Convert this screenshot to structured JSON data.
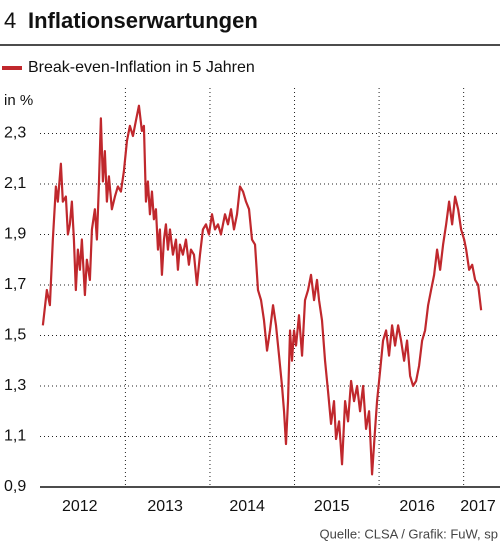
{
  "chart_data": {
    "type": "line",
    "chart_number": "4",
    "title": "Inflationserwartungen",
    "y_unit": "in %",
    "source": "Quelle: CLSA / Grafik: FuW, sp",
    "grid": true,
    "legend": "top-left",
    "xlim": [
      2011.99,
      2017.43
    ],
    "ylim": [
      0.9,
      2.48
    ],
    "xticks": [
      {
        "value": 2012.46,
        "label": "2012"
      },
      {
        "value": 2013.47,
        "label": "2013"
      },
      {
        "value": 2014.44,
        "label": "2014"
      },
      {
        "value": 2015.44,
        "label": "2015"
      },
      {
        "value": 2016.45,
        "label": "2016"
      },
      {
        "value": 2017.17,
        "label": "2017"
      }
    ],
    "xgrid": [
      2013,
      2014,
      2015,
      2016,
      2017
    ],
    "yticks": [
      {
        "value": 0.9,
        "label": "0,9"
      },
      {
        "value": 1.1,
        "label": "1,1"
      },
      {
        "value": 1.3,
        "label": "1,3"
      },
      {
        "value": 1.5,
        "label": "1,5"
      },
      {
        "value": 1.7,
        "label": "1,7"
      },
      {
        "value": 1.9,
        "label": "1,9"
      },
      {
        "value": 2.1,
        "label": "2,1"
      },
      {
        "value": 2.3,
        "label": "2,3"
      }
    ],
    "x": [
      2012.024,
      2012.071,
      2012.107,
      2012.142,
      2012.178,
      2012.201,
      2012.237,
      2012.26,
      2012.296,
      2012.32,
      2012.343,
      2012.367,
      2012.391,
      2012.414,
      2012.438,
      2012.462,
      2012.485,
      2012.521,
      2012.544,
      2012.58,
      2012.604,
      2012.639,
      2012.663,
      2012.686,
      2012.71,
      2012.734,
      2012.757,
      2012.781,
      2012.805,
      2012.84,
      2012.876,
      2012.911,
      2012.947,
      2012.982,
      2013.018,
      2013.053,
      2013.089,
      2013.124,
      2013.16,
      2013.195,
      2013.219,
      2013.243,
      2013.266,
      2013.29,
      2013.314,
      2013.337,
      2013.361,
      2013.385,
      2013.408,
      2013.432,
      2013.456,
      2013.479,
      2013.503,
      2013.527,
      2013.562,
      2013.598,
      2013.621,
      2013.645,
      2013.68,
      2013.716,
      2013.751,
      2013.775,
      2013.811,
      2013.846,
      2013.882,
      2013.917,
      2013.953,
      2013.988,
      2014.024,
      2014.059,
      2014.095,
      2014.13,
      2014.178,
      2014.213,
      2014.249,
      2014.284,
      2014.32,
      2014.355,
      2014.391,
      2014.426,
      2014.462,
      2014.497,
      2014.533,
      2014.568,
      2014.604,
      2014.639,
      2014.675,
      2014.71,
      2014.746,
      2014.781,
      2014.817,
      2014.852,
      2014.876,
      2014.899,
      2014.923,
      2014.947,
      2014.97,
      2014.994,
      2015.018,
      2015.053,
      2015.089,
      2015.124,
      2015.16,
      2015.195,
      2015.231,
      2015.266,
      2015.29,
      2015.325,
      2015.361,
      2015.396,
      2015.432,
      2015.467,
      2015.491,
      2015.527,
      2015.562,
      2015.598,
      2015.633,
      2015.669,
      2015.704,
      2015.74,
      2015.775,
      2015.811,
      2015.846,
      2015.882,
      2015.917,
      2015.953,
      2015.976,
      2016.012,
      2016.047,
      2016.083,
      2016.118,
      2016.154,
      2016.189,
      2016.225,
      2016.26,
      2016.296,
      2016.331,
      2016.367,
      2016.402,
      2016.438,
      2016.473,
      2016.509,
      2016.544,
      2016.58,
      2016.615,
      2016.651,
      2016.686,
      2016.722,
      2016.757,
      2016.793,
      2016.828,
      2016.864,
      2016.899,
      2016.935,
      2016.97,
      2017.006,
      2017.03,
      2017.065,
      2017.101,
      2017.136,
      2017.172,
      2017.207
    ],
    "series": [
      {
        "name": "Break-even-Inflation in 5 Jahren",
        "color": "#c0282d",
        "values": [
          1.54,
          1.68,
          1.62,
          1.88,
          2.09,
          2.03,
          2.18,
          2.03,
          2.05,
          1.9,
          1.94,
          2.03,
          1.88,
          1.68,
          1.84,
          1.76,
          1.88,
          1.66,
          1.8,
          1.72,
          1.92,
          2.0,
          1.88,
          2.09,
          2.36,
          2.11,
          2.23,
          2.03,
          2.13,
          2.0,
          2.05,
          2.09,
          2.07,
          2.15,
          2.27,
          2.33,
          2.29,
          2.35,
          2.41,
          2.31,
          2.33,
          2.03,
          2.11,
          1.98,
          2.07,
          1.96,
          2.0,
          1.84,
          1.92,
          1.74,
          1.88,
          1.94,
          1.84,
          1.92,
          1.82,
          1.88,
          1.76,
          1.86,
          1.82,
          1.88,
          1.78,
          1.84,
          1.82,
          1.7,
          1.82,
          1.92,
          1.94,
          1.9,
          1.98,
          1.92,
          1.94,
          1.9,
          1.98,
          1.94,
          2.0,
          1.92,
          1.98,
          2.09,
          2.07,
          2.03,
          2.0,
          1.88,
          1.86,
          1.68,
          1.64,
          1.56,
          1.44,
          1.52,
          1.62,
          1.54,
          1.42,
          1.3,
          1.2,
          1.07,
          1.24,
          1.52,
          1.4,
          1.52,
          1.46,
          1.58,
          1.42,
          1.64,
          1.68,
          1.74,
          1.64,
          1.72,
          1.64,
          1.56,
          1.4,
          1.28,
          1.15,
          1.24,
          1.09,
          1.16,
          0.99,
          1.24,
          1.16,
          1.32,
          1.24,
          1.3,
          1.2,
          1.3,
          1.13,
          1.2,
          0.95,
          1.13,
          1.24,
          1.36,
          1.48,
          1.52,
          1.42,
          1.54,
          1.46,
          1.54,
          1.48,
          1.4,
          1.48,
          1.34,
          1.3,
          1.32,
          1.38,
          1.48,
          1.52,
          1.62,
          1.68,
          1.74,
          1.84,
          1.76,
          1.86,
          1.94,
          2.03,
          1.94,
          2.05,
          2.0,
          1.92,
          1.88,
          1.84,
          1.76,
          1.78,
          1.72,
          1.7,
          1.6
        ]
      }
    ]
  }
}
